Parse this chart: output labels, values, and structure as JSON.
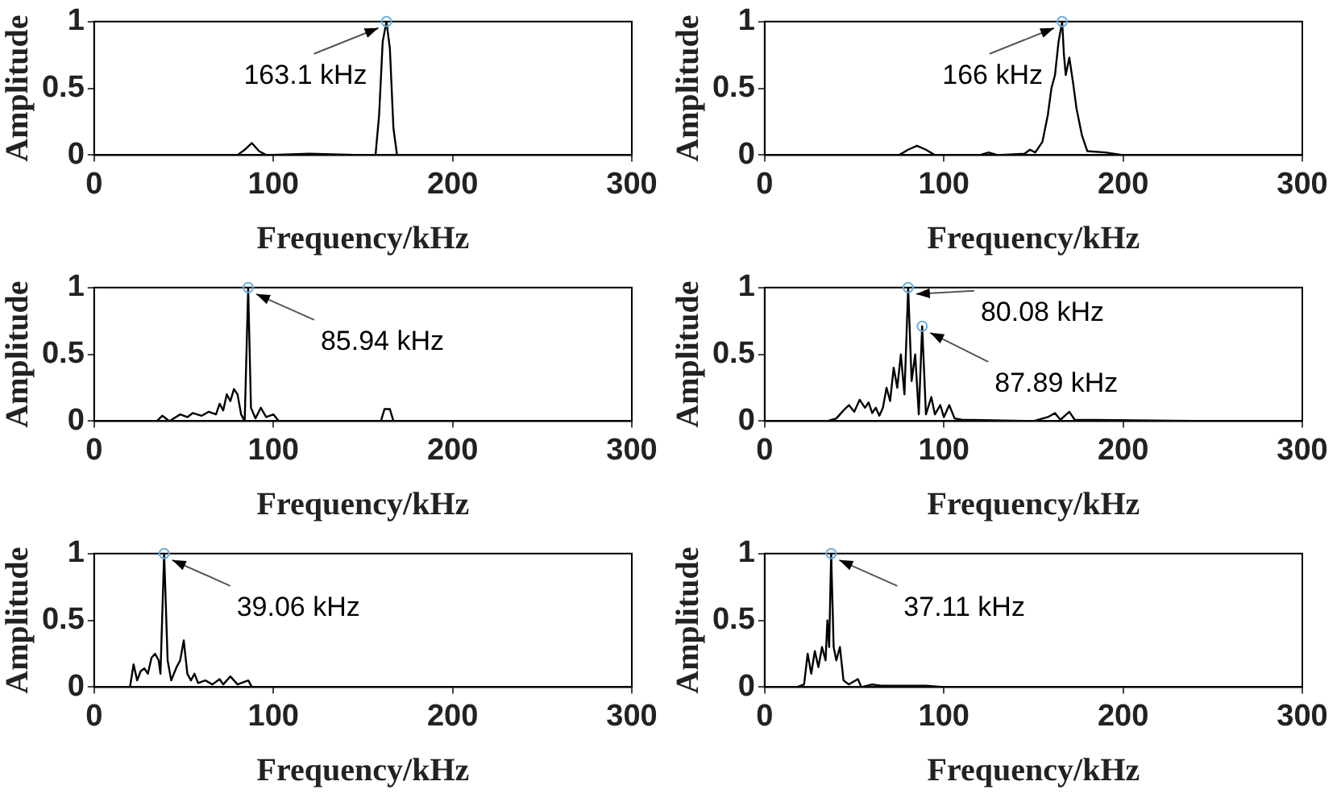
{
  "chart_data": [
    {
      "type": "line",
      "xlabel": "Frequency/kHz",
      "ylabel": "Amplitude",
      "xlim": [
        0,
        300
      ],
      "xticks": [
        0,
        100,
        200,
        300
      ],
      "ylim": [
        0,
        1
      ],
      "yticks": [
        0,
        0.5,
        1
      ],
      "series": [
        {
          "color": "#000000",
          "x": [
            0,
            80,
            84,
            88,
            92,
            96,
            120,
            150,
            157,
            159,
            161,
            163.1,
            165,
            167,
            169,
            175,
            250
          ],
          "values": [
            0,
            0,
            0.04,
            0.09,
            0.03,
            0,
            0.01,
            0,
            0,
            0.3,
            0.85,
            1,
            0.8,
            0.2,
            0,
            0,
            0
          ]
        }
      ],
      "annotations": [
        {
          "text": "163.1 kHz",
          "x": 163.1,
          "y": 1
        }
      ]
    },
    {
      "type": "line",
      "xlabel": "Frequency/kHz",
      "ylabel": "Amplitude",
      "xlim": [
        0,
        300
      ],
      "xticks": [
        0,
        100,
        200,
        300
      ],
      "ylim": [
        0,
        1
      ],
      "yticks": [
        0,
        0.5,
        1
      ],
      "series": [
        {
          "color": "#000000",
          "x": [
            0,
            75,
            80,
            85,
            90,
            95,
            120,
            125,
            130,
            145,
            148,
            151,
            155,
            158,
            160,
            162,
            164,
            166,
            167,
            168,
            170,
            172,
            174,
            177,
            180,
            190,
            200,
            250
          ],
          "values": [
            0,
            0,
            0.04,
            0.07,
            0.04,
            0,
            0,
            0.02,
            0,
            0.01,
            0.04,
            0.02,
            0.1,
            0.3,
            0.5,
            0.6,
            0.85,
            1,
            0.75,
            0.6,
            0.73,
            0.55,
            0.35,
            0.15,
            0.03,
            0.02,
            0,
            0
          ]
        }
      ],
      "annotations": [
        {
          "text": "166 kHz",
          "x": 166,
          "y": 1
        }
      ]
    },
    {
      "type": "line",
      "xlabel": "Frequency/kHz",
      "ylabel": "Amplitude",
      "xlim": [
        0,
        300
      ],
      "xticks": [
        0,
        100,
        200,
        300
      ],
      "ylim": [
        0,
        1
      ],
      "yticks": [
        0,
        0.5,
        1
      ],
      "series": [
        {
          "color": "#000000",
          "x": [
            0,
            35,
            38,
            42,
            48,
            52,
            55,
            60,
            64,
            68,
            70,
            72,
            74,
            76,
            78,
            80,
            82,
            84,
            85.94,
            87.5,
            90,
            93,
            96,
            100,
            103,
            160,
            162,
            165,
            167,
            250
          ],
          "values": [
            0,
            0,
            0.04,
            0,
            0.05,
            0.03,
            0.06,
            0.04,
            0.07,
            0.05,
            0.13,
            0.08,
            0.2,
            0.15,
            0.24,
            0.2,
            0.05,
            0,
            1,
            0.1,
            0.02,
            0.1,
            0.03,
            0.05,
            0,
            0,
            0.09,
            0.09,
            0,
            0
          ]
        }
      ],
      "annotations": [
        {
          "text": "85.94 kHz",
          "x": 85.94,
          "y": 1
        }
      ]
    },
    {
      "type": "line",
      "xlabel": "Frequency/kHz",
      "ylabel": "Amplitude",
      "xlim": [
        0,
        300
      ],
      "xticks": [
        0,
        100,
        200,
        300
      ],
      "ylim": [
        0,
        1
      ],
      "yticks": [
        0,
        0.5,
        1
      ],
      "series": [
        {
          "color": "#000000",
          "x": [
            0,
            35,
            40,
            44,
            47,
            50,
            53,
            56,
            58,
            60,
            62,
            64,
            66,
            68,
            70,
            72,
            74,
            76,
            78,
            80.08,
            82,
            84,
            86,
            87.89,
            90,
            93,
            95,
            98,
            100,
            103,
            106,
            110,
            150,
            158,
            162,
            165,
            170,
            173,
            250
          ],
          "values": [
            0,
            0,
            0.02,
            0.08,
            0.12,
            0.07,
            0.16,
            0.1,
            0.14,
            0.06,
            0.1,
            0.04,
            0.1,
            0.25,
            0.15,
            0.4,
            0.25,
            0.5,
            0.2,
            1,
            0.3,
            0.5,
            0.05,
            0.71,
            0.05,
            0.18,
            0.05,
            0.12,
            0.03,
            0.12,
            0.02,
            0.01,
            0,
            0.03,
            0.06,
            0.01,
            0.07,
            0.01,
            0
          ]
        }
      ],
      "annotations": [
        {
          "text": "80.08 kHz",
          "x": 80.08,
          "y": 1
        },
        {
          "text": "87.89 kHz",
          "x": 87.89,
          "y": 0.71
        }
      ]
    },
    {
      "type": "line",
      "xlabel": "Frequency/kHz",
      "ylabel": "Amplitude",
      "xlim": [
        0,
        300
      ],
      "xticks": [
        0,
        100,
        200,
        300
      ],
      "ylim": [
        0,
        1
      ],
      "yticks": [
        0,
        0.5,
        1
      ],
      "series": [
        {
          "color": "#000000",
          "x": [
            0,
            20,
            22,
            24,
            26,
            28,
            30,
            32,
            34,
            36,
            37,
            39.06,
            41,
            43,
            46,
            48,
            50,
            52,
            54,
            56,
            58,
            62,
            66,
            70,
            72,
            76,
            80,
            86,
            88,
            250
          ],
          "values": [
            0,
            0,
            0.17,
            0.05,
            0.12,
            0.14,
            0.1,
            0.22,
            0.25,
            0.2,
            0.1,
            1,
            0.2,
            0.05,
            0.15,
            0.2,
            0.35,
            0.1,
            0.05,
            0.1,
            0.03,
            0.05,
            0.02,
            0.06,
            0.02,
            0.08,
            0.02,
            0.05,
            0,
            0
          ]
        }
      ],
      "annotations": [
        {
          "text": "39.06 kHz",
          "x": 39.06,
          "y": 1
        }
      ]
    },
    {
      "type": "line",
      "xlabel": "Frequency/kHz",
      "ylabel": "Amplitude",
      "xlim": [
        0,
        300
      ],
      "xticks": [
        0,
        100,
        200,
        300
      ],
      "ylim": [
        0,
        1
      ],
      "yticks": [
        0,
        0.5,
        1
      ],
      "series": [
        {
          "color": "#000000",
          "x": [
            0,
            18,
            22,
            24,
            26,
            28,
            30,
            32,
            34,
            35,
            36,
            37.11,
            38.5,
            40,
            42,
            44,
            47,
            52,
            54,
            60,
            65,
            80,
            90,
            100,
            250
          ],
          "values": [
            0,
            0,
            0.02,
            0.25,
            0.1,
            0.27,
            0.15,
            0.3,
            0.2,
            0.5,
            0.3,
            1,
            0.3,
            0.2,
            0.3,
            0.05,
            0.02,
            0.06,
            0,
            0.02,
            0.01,
            0.01,
            0.01,
            0,
            0
          ]
        }
      ],
      "annotations": [
        {
          "text": "37.11 kHz",
          "x": 37.11,
          "y": 1
        }
      ]
    }
  ]
}
